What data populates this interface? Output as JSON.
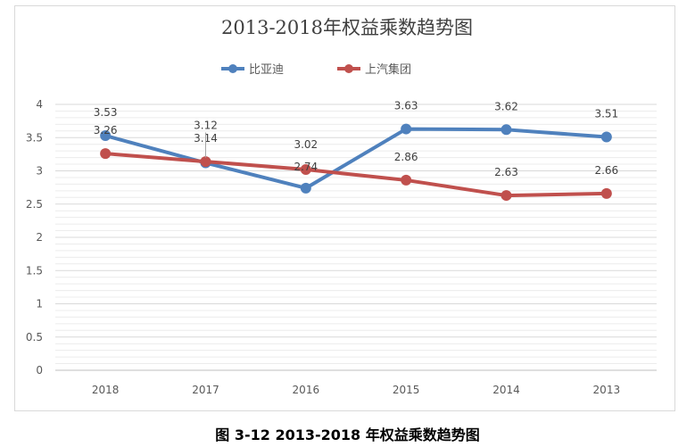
{
  "caption": "图 3-12 2013-2018 年权益乘数趋势图",
  "colors": {
    "byd": "#4f81bd",
    "saic": "#c0504d",
    "grid": "#d9d9d9",
    "text": "#595959"
  },
  "chart_data": {
    "type": "line",
    "title": "2013-2018年权益乘数趋势图",
    "categories": [
      "2018",
      "2017",
      "2016",
      "2015",
      "2014",
      "2013"
    ],
    "ylim": [
      0,
      4
    ],
    "yticks": [
      "0",
      "0.5",
      "1",
      "1.5",
      "2",
      "2.5",
      "3",
      "3.5",
      "4"
    ],
    "legend_position": "top-center",
    "grid": true,
    "series": [
      {
        "name": "比亚迪",
        "values": [
          3.53,
          3.12,
          2.74,
          3.63,
          3.62,
          3.51
        ],
        "labels": [
          "3.53",
          "3.12",
          "2.74",
          "3.63",
          "3.62",
          "3.51"
        ],
        "color": "#4f81bd"
      },
      {
        "name": "上汽集团",
        "values": [
          3.26,
          3.14,
          3.02,
          2.86,
          2.63,
          2.66
        ],
        "labels": [
          "3.26",
          "3.14",
          "3.02",
          "2.86",
          "2.63",
          "2.66"
        ],
        "color": "#c0504d"
      }
    ]
  }
}
